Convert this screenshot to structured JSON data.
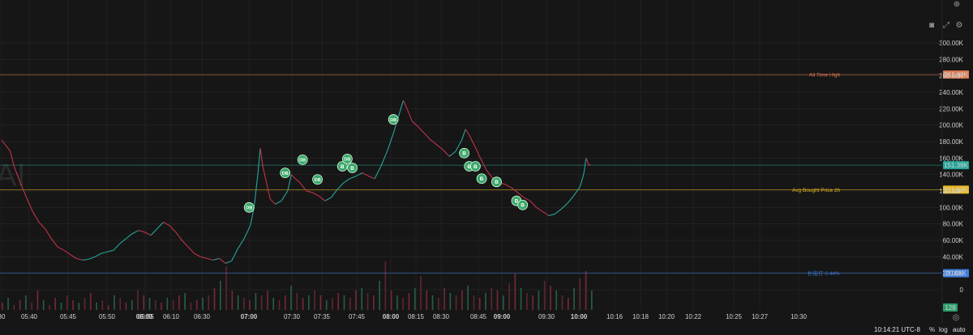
{
  "toolbar": {
    "icons": [
      "plus-circle-icon",
      "camera-icon",
      "expand-icon",
      "gear-icon"
    ]
  },
  "footer": {
    "clock": "10:14:21 UTC-8",
    "percent_label": "%",
    "log_label": "log",
    "auto_label": "auto",
    "settings_icon": "gear-icon"
  },
  "chart_data": {
    "type": "candlestick",
    "x_ticks": [
      {
        "label": "30",
        "bold": false
      },
      {
        "label": "05:40",
        "bold": false
      },
      {
        "label": "05:45",
        "bold": false
      },
      {
        "label": "05:50",
        "bold": false
      },
      {
        "label": "05:55",
        "bold": false
      },
      {
        "label": "06:00",
        "bold": true
      },
      {
        "label": "06:10",
        "bold": false
      },
      {
        "label": "06:30",
        "bold": false
      },
      {
        "label": "07:00",
        "bold": true
      },
      {
        "label": "07:30",
        "bold": false
      },
      {
        "label": "07:35",
        "bold": false
      },
      {
        "label": "07:45",
        "bold": false
      },
      {
        "label": "08:00",
        "bold": true
      },
      {
        "label": "08:15",
        "bold": false
      },
      {
        "label": "08:30",
        "bold": false
      },
      {
        "label": "08:45",
        "bold": false
      },
      {
        "label": "09:00",
        "bold": true
      },
      {
        "label": "09:30",
        "bold": false
      },
      {
        "label": "10:00",
        "bold": true
      },
      {
        "label": "10:16",
        "bold": false
      },
      {
        "label": "10:18",
        "bold": false
      },
      {
        "label": "10:20",
        "bold": false
      },
      {
        "label": "10:22",
        "bold": false
      },
      {
        "label": "10:25",
        "bold": false
      },
      {
        "label": "10:27",
        "bold": false
      },
      {
        "label": "10:30",
        "bold": false
      }
    ],
    "y_ticks": [
      "300.00K",
      "280.00K",
      "260.00K",
      "240.00K",
      "220.00K",
      "200.00K",
      "180.00K",
      "160.00K",
      "140.00K",
      "120.00K",
      "100.00K",
      "80.00K",
      "60.00K",
      "40.00K",
      "20.00K",
      "0"
    ],
    "y_tick_values": [
      300000,
      280000,
      260000,
      240000,
      220000,
      200000,
      180000,
      160000,
      140000,
      120000,
      100000,
      80000,
      60000,
      40000,
      20000,
      0
    ],
    "ylim": [
      0,
      310000
    ],
    "price_path": [
      [
        0,
        182000
      ],
      [
        0.3,
        176000
      ],
      [
        0.7,
        168000
      ],
      [
        1,
        150000
      ],
      [
        1.5,
        130000
      ],
      [
        2,
        112000
      ],
      [
        2.5,
        95000
      ],
      [
        3,
        82000
      ],
      [
        3.5,
        74000
      ],
      [
        4,
        62000
      ],
      [
        4.5,
        52000
      ],
      [
        5,
        48000
      ],
      [
        5.5,
        43000
      ],
      [
        6,
        38000
      ],
      [
        6.5,
        36000
      ],
      [
        7,
        37000
      ],
      [
        7.5,
        40000
      ],
      [
        8,
        44000
      ],
      [
        8.5,
        46000
      ],
      [
        9,
        48000
      ],
      [
        9.5,
        56000
      ],
      [
        10,
        62000
      ],
      [
        10.5,
        68000
      ],
      [
        11,
        72000
      ],
      [
        11.5,
        70000
      ],
      [
        12,
        66000
      ],
      [
        12.5,
        74000
      ],
      [
        13,
        82000
      ],
      [
        13.5,
        78000
      ],
      [
        14,
        70000
      ],
      [
        14.5,
        60000
      ],
      [
        15,
        52000
      ],
      [
        15.5,
        44000
      ],
      [
        16,
        40000
      ],
      [
        16.5,
        38000
      ],
      [
        17,
        36000
      ],
      [
        17.5,
        38000
      ],
      [
        18,
        32000
      ],
      [
        18.5,
        35000
      ],
      [
        19,
        50000
      ],
      [
        19.5,
        62000
      ],
      [
        20,
        78000
      ],
      [
        20.3,
        100000
      ],
      [
        20.6,
        140000
      ],
      [
        20.8,
        172000
      ],
      [
        21,
        150000
      ],
      [
        21.3,
        130000
      ],
      [
        21.6,
        110000
      ],
      [
        22,
        104000
      ],
      [
        22.5,
        108000
      ],
      [
        23,
        120000
      ],
      [
        23.3,
        140000
      ],
      [
        23.6,
        135000
      ],
      [
        24,
        130000
      ],
      [
        24.5,
        120000
      ],
      [
        25,
        118000
      ],
      [
        25.5,
        114000
      ],
      [
        26,
        108000
      ],
      [
        26.5,
        112000
      ],
      [
        27,
        122000
      ],
      [
        27.5,
        130000
      ],
      [
        28,
        135000
      ],
      [
        28.5,
        138000
      ],
      [
        29,
        142000
      ],
      [
        29.5,
        138000
      ],
      [
        30,
        135000
      ],
      [
        30.5,
        150000
      ],
      [
        31,
        168000
      ],
      [
        31.5,
        190000
      ],
      [
        32,
        215000
      ],
      [
        32.3,
        230000
      ],
      [
        32.6,
        220000
      ],
      [
        33,
        205000
      ],
      [
        33.5,
        198000
      ],
      [
        34,
        190000
      ],
      [
        34.5,
        182000
      ],
      [
        35,
        176000
      ],
      [
        35.5,
        170000
      ],
      [
        36,
        162000
      ],
      [
        36.5,
        168000
      ],
      [
        37,
        182000
      ],
      [
        37.3,
        195000
      ],
      [
        37.6,
        188000
      ],
      [
        38,
        176000
      ],
      [
        38.5,
        160000
      ],
      [
        39,
        145000
      ],
      [
        39.5,
        135000
      ],
      [
        40,
        130000
      ],
      [
        40.5,
        128000
      ],
      [
        41,
        124000
      ],
      [
        41.5,
        118000
      ],
      [
        42,
        112000
      ],
      [
        42.5,
        108000
      ],
      [
        43,
        100000
      ],
      [
        43.5,
        95000
      ],
      [
        44,
        90000
      ],
      [
        44.5,
        92000
      ],
      [
        45,
        98000
      ],
      [
        45.5,
        105000
      ],
      [
        46,
        114000
      ],
      [
        46.5,
        125000
      ],
      [
        46.8,
        140000
      ],
      [
        47,
        160000
      ],
      [
        47.2,
        152000
      ],
      [
        47.4,
        151380
      ]
    ],
    "volume_bars": [
      3,
      5,
      2,
      4,
      6,
      3,
      8,
      4,
      2,
      5,
      3,
      6,
      4,
      3,
      5,
      7,
      3,
      4,
      2,
      6,
      5,
      3,
      4,
      8,
      6,
      5,
      4,
      3,
      5,
      4,
      6,
      7,
      3,
      4,
      5,
      6,
      9,
      12,
      18,
      8,
      6,
      5,
      4,
      7,
      6,
      8,
      5,
      4,
      6,
      10,
      7,
      5,
      6,
      8,
      6,
      4,
      5,
      7,
      6,
      5,
      8,
      9,
      7,
      6,
      12,
      20,
      8,
      6,
      5,
      7,
      9,
      14,
      8,
      6,
      5,
      9,
      7,
      6,
      8,
      10,
      6,
      5,
      7,
      9,
      8,
      6,
      11,
      15,
      9,
      7,
      6,
      8,
      12,
      10,
      8,
      6,
      5,
      9,
      13,
      16,
      8
    ],
    "horizontal_levels": [
      {
        "name": "All Time High",
        "value": 261490,
        "badge": "261.49K",
        "color": "#e07b53"
      },
      {
        "name": "Avg Bought Price 2h",
        "value": 121630,
        "badge": "121.63K",
        "color": "#e8b720"
      },
      {
        "name": "",
        "value": 151380,
        "badge": "151.38K",
        "color": "#26a69a"
      },
      {
        "name": "扑街仔 0.44%",
        "value": 20010,
        "badge": "20.01K",
        "color": "#3d7fe0"
      }
    ],
    "volume_badge": "128",
    "trade_markers": [
      {
        "label": "DB",
        "x": 19.9,
        "y": 100000
      },
      {
        "label": "DB",
        "x": 22.8,
        "y": 142000
      },
      {
        "label": "DB",
        "x": 24.2,
        "y": 158000
      },
      {
        "label": "DB",
        "x": 25.4,
        "y": 134000
      },
      {
        "label": "B",
        "x": 27.4,
        "y": 150000
      },
      {
        "label": "DB",
        "x": 27.8,
        "y": 159000
      },
      {
        "label": "B",
        "x": 28.2,
        "y": 148000
      },
      {
        "label": "DB",
        "x": 31.5,
        "y": 207000
      },
      {
        "label": "B",
        "x": 37.2,
        "y": 166000
      },
      {
        "label": "B",
        "x": 37.6,
        "y": 150000
      },
      {
        "label": "B",
        "x": 38.1,
        "y": 150000
      },
      {
        "label": "B",
        "x": 38.6,
        "y": 135000
      },
      {
        "label": "B",
        "x": 39.8,
        "y": 131000
      },
      {
        "label": "B",
        "x": 41.4,
        "y": 108000
      },
      {
        "label": "B",
        "x": 41.9,
        "y": 103000
      }
    ],
    "watermark": "AI"
  }
}
